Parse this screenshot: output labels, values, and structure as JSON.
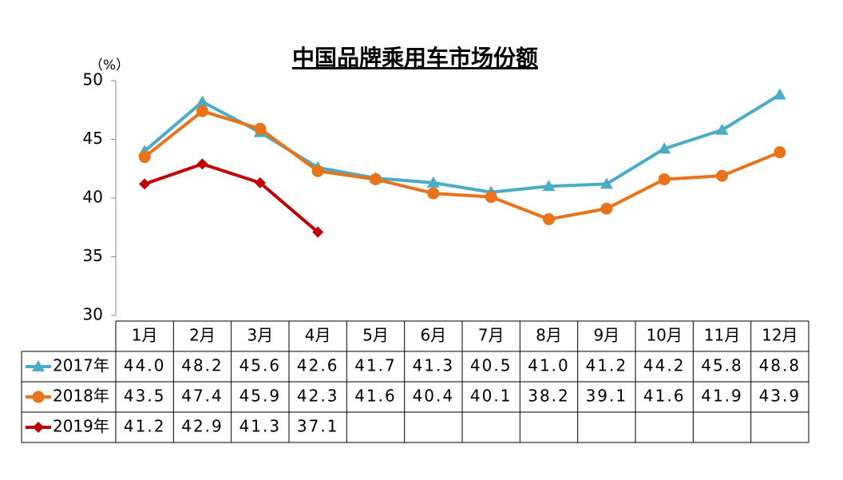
{
  "chart_data": {
    "type": "line",
    "title": "中国品牌乘用车市场份额",
    "ylabel": "（%）",
    "categories": [
      "1月",
      "2月",
      "3月",
      "4月",
      "5月",
      "6月",
      "7月",
      "8月",
      "9月",
      "10月",
      "11月",
      "12月"
    ],
    "series": [
      {
        "name": "2017年",
        "color": "#4bacc6",
        "marker": "triangle",
        "values": [
          44.0,
          48.2,
          45.6,
          42.6,
          41.7,
          41.3,
          40.5,
          41.0,
          41.2,
          44.2,
          45.8,
          48.8
        ],
        "value_labels": [
          "44.0",
          "48.2",
          "45.6",
          "42.6",
          "41.7",
          "41.3",
          "40.5",
          "41.0",
          "41.2",
          "44.2",
          "45.8",
          "48.8"
        ]
      },
      {
        "name": "2018年",
        "color": "#e8731a",
        "marker": "circle",
        "values": [
          43.5,
          47.4,
          45.9,
          42.3,
          41.6,
          40.4,
          40.1,
          38.2,
          39.1,
          41.6,
          41.9,
          43.9
        ],
        "value_labels": [
          "43.5",
          "47.4",
          "45.9",
          "42.3",
          "41.6",
          "40.4",
          "40.1",
          "38.2",
          "39.1",
          "41.6",
          "41.9",
          "43.9"
        ]
      },
      {
        "name": "2019年",
        "color": "#c00000",
        "marker": "diamond",
        "values": [
          41.2,
          42.9,
          41.3,
          37.1,
          null,
          null,
          null,
          null,
          null,
          null,
          null,
          null
        ],
        "value_labels": [
          "41.2",
          "42.9",
          "41.3",
          "37.1",
          null,
          null,
          null,
          null,
          null,
          null,
          null,
          null
        ]
      }
    ],
    "ylim": [
      30,
      50
    ],
    "yticks": [
      30,
      35,
      40,
      45,
      50
    ]
  }
}
